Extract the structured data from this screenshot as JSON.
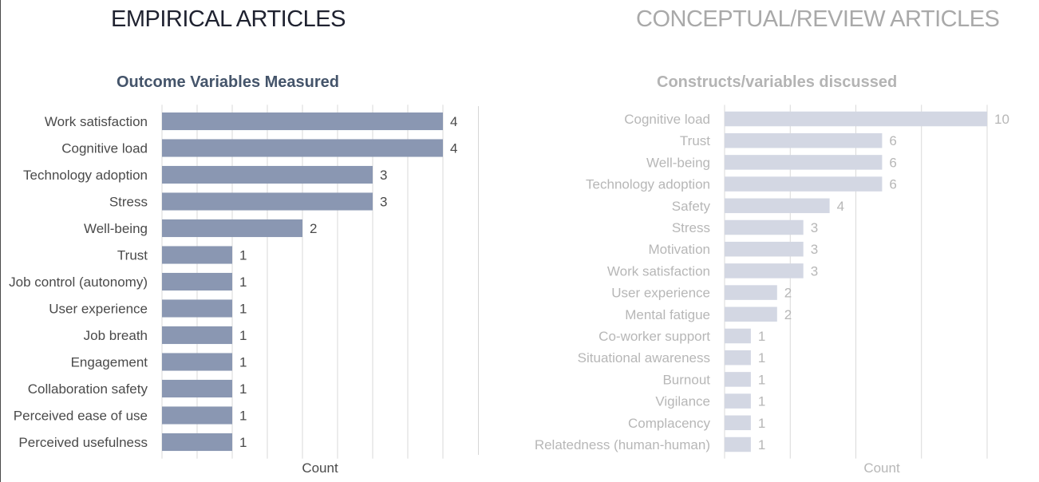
{
  "headers": {
    "left": "EMPIRICAL ARTICLES",
    "right": "CONCEPTUAL/REVIEW ARTICLES"
  },
  "colors": {
    "left_bar": "#8a97b2",
    "right_bar": "#d3d7e3",
    "left_title": "#44546a",
    "right_title": "#b4b4b4"
  },
  "chart_data": [
    {
      "type": "bar",
      "orientation": "horizontal",
      "title": "Outcome Variables Measured",
      "xlabel": "Count",
      "ylabel": "",
      "xlim": [
        0,
        4
      ],
      "grid": true,
      "legend": "none",
      "categories": [
        "Work satisfaction",
        "Cognitive load",
        "Technology adoption",
        "Stress",
        "Well-being",
        "Trust",
        "Job control (autonomy)",
        "User experience",
        "Job breath",
        "Engagement",
        "Collaboration safety",
        "Perceived ease of use",
        "Perceived usefulness"
      ],
      "values": [
        4,
        4,
        3,
        3,
        2,
        1,
        1,
        1,
        1,
        1,
        1,
        1,
        1
      ]
    },
    {
      "type": "bar",
      "orientation": "horizontal",
      "title": "Constructs/variables discussed",
      "xlabel": "Count",
      "ylabel": "",
      "xlim": [
        0,
        10
      ],
      "grid": true,
      "legend": "none",
      "categories": [
        "Cognitive load",
        "Trust",
        "Well-being",
        "Technology adoption",
        "Safety",
        "Stress",
        "Motivation",
        "Work satisfaction",
        "User experience",
        "Mental fatigue",
        "Co-worker support",
        "Situational awareness",
        "Burnout",
        "Vigilance",
        "Complacency",
        "Relatedness (human-human)"
      ],
      "values": [
        10,
        6,
        6,
        6,
        4,
        3,
        3,
        3,
        2,
        2,
        1,
        1,
        1,
        1,
        1,
        1
      ]
    }
  ]
}
